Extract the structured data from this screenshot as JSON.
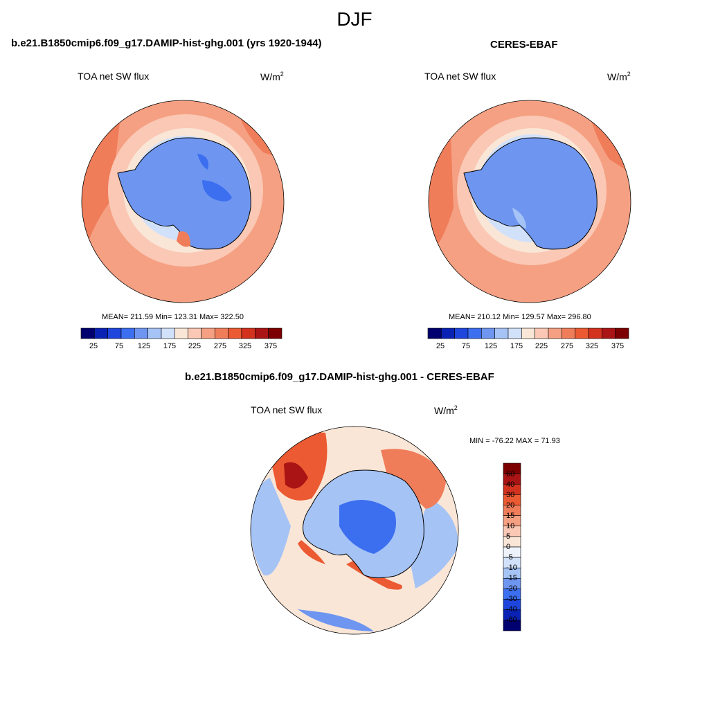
{
  "figure": {
    "title": "DJF"
  },
  "panels": [
    {
      "title": "b.e21.B1850cmip6.f09_g17.DAMIP-hist-ghg.001 (yrs 1920-1944)",
      "variable": "TOA net SW flux",
      "units_base": "W/m",
      "units_sup": "2",
      "stats": "MEAN= 211.59  Min= 123.31  Max= 322.50",
      "colorbar_ticks": [
        "25",
        "75",
        "125",
        "175",
        "225",
        "275",
        "325",
        "375"
      ]
    },
    {
      "title": "CERES-EBAF",
      "variable": "TOA net SW flux",
      "units_base": "W/m",
      "units_sup": "2",
      "stats": "MEAN= 210.12  Min= 129.57  Max= 296.80",
      "colorbar_ticks": [
        "25",
        "75",
        "125",
        "175",
        "225",
        "275",
        "325",
        "375"
      ]
    },
    {
      "title": "b.e21.B1850cmip6.f09_g17.DAMIP-hist-ghg.001 - CERES-EBAF",
      "variable": "TOA net SW flux",
      "units_base": "W/m",
      "units_sup": "2",
      "stats": "MIN = -76.22 MAX =  71.93",
      "colorbar_labels": [
        "60",
        "40",
        "30",
        "20",
        "15",
        "10",
        "5",
        "0",
        "-5",
        "-10",
        "-15",
        "-20",
        "-30",
        "-40",
        "-60"
      ]
    }
  ],
  "colors": {
    "abs_scale": [
      "#00006e",
      "#0a22b4",
      "#1e46dc",
      "#3c6ef0",
      "#6e96f0",
      "#a5c3f5",
      "#d2e1fa",
      "#fae6d7",
      "#fac8b4",
      "#f5a082",
      "#f07d5a",
      "#eb5a32",
      "#d2321e",
      "#aa1414",
      "#7d0000"
    ],
    "diff_scale": [
      "#00006e",
      "#0a22b4",
      "#1e46dc",
      "#3c6ef0",
      "#6e96f0",
      "#a5c3f5",
      "#d2e1fa",
      "#eef3fb",
      "#fae6d7",
      "#fac8b4",
      "#f5a082",
      "#f07d5a",
      "#eb5a32",
      "#d2321e",
      "#aa1414",
      "#7d0000"
    ]
  }
}
